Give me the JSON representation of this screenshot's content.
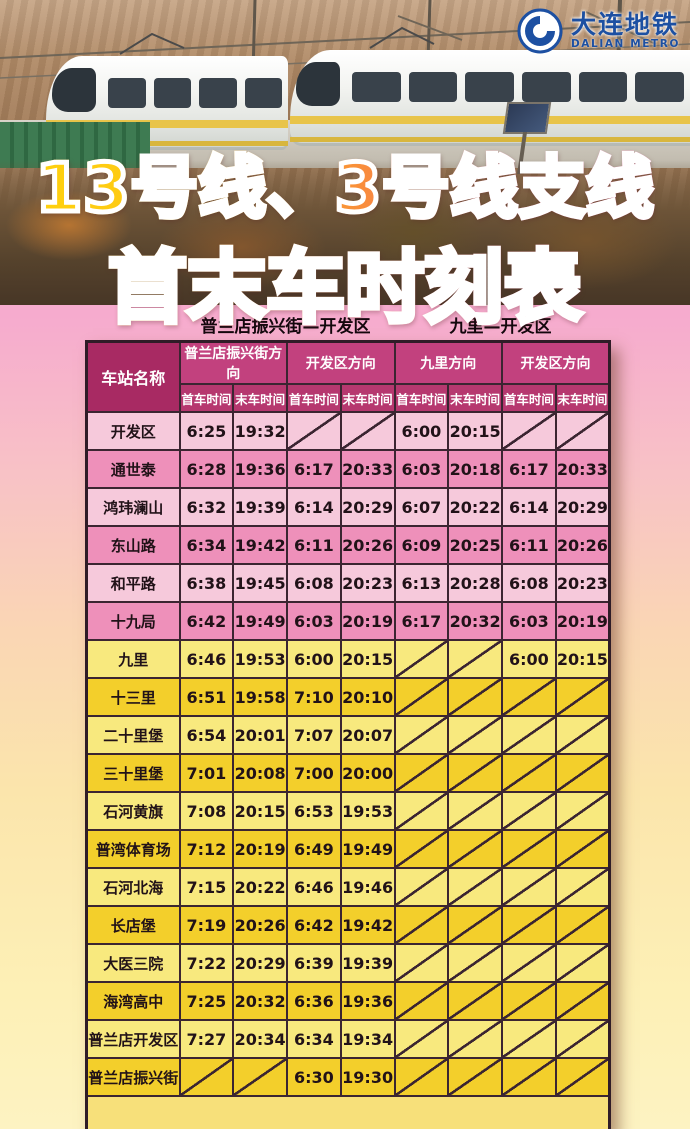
{
  "logo": {
    "cn": "大连地铁",
    "en": "DALIAN METRO"
  },
  "title": {
    "line1": "13号线、3号线支线",
    "line2": "首末车时刻表"
  },
  "table": {
    "group_headers": [
      "普兰店振兴街—开发区",
      "九里—开发区"
    ],
    "station_col_header": "车站名称",
    "direction_headers": [
      "普兰店振兴街方向",
      "开发区方向",
      "九里方向",
      "开发区方向"
    ],
    "sub_headers": [
      "首车时间",
      "末车时间"
    ],
    "rows": [
      {
        "station": "开发区",
        "times": [
          "6:25",
          "19:32",
          null,
          null,
          "6:00",
          "20:15",
          null,
          null
        ]
      },
      {
        "station": "通世泰",
        "times": [
          "6:28",
          "19:36",
          "6:17",
          "20:33",
          "6:03",
          "20:18",
          "6:17",
          "20:33"
        ]
      },
      {
        "station": "鸿玮澜山",
        "times": [
          "6:32",
          "19:39",
          "6:14",
          "20:29",
          "6:07",
          "20:22",
          "6:14",
          "20:29"
        ]
      },
      {
        "station": "东山路",
        "times": [
          "6:34",
          "19:42",
          "6:11",
          "20:26",
          "6:09",
          "20:25",
          "6:11",
          "20:26"
        ]
      },
      {
        "station": "和平路",
        "times": [
          "6:38",
          "19:45",
          "6:08",
          "20:23",
          "6:13",
          "20:28",
          "6:08",
          "20:23"
        ]
      },
      {
        "station": "十九局",
        "times": [
          "6:42",
          "19:49",
          "6:03",
          "20:19",
          "6:17",
          "20:32",
          "6:03",
          "20:19"
        ]
      },
      {
        "station": "九里",
        "times": [
          "6:46",
          "19:53",
          "6:00",
          "20:15",
          null,
          null,
          "6:00",
          "20:15"
        ]
      },
      {
        "station": "十三里",
        "times": [
          "6:51",
          "19:58",
          "7:10",
          "20:10",
          null,
          null,
          null,
          null
        ]
      },
      {
        "station": "二十里堡",
        "times": [
          "6:54",
          "20:01",
          "7:07",
          "20:07",
          null,
          null,
          null,
          null
        ]
      },
      {
        "station": "三十里堡",
        "times": [
          "7:01",
          "20:08",
          "7:00",
          "20:00",
          null,
          null,
          null,
          null
        ]
      },
      {
        "station": "石河黄旗",
        "times": [
          "7:08",
          "20:15",
          "6:53",
          "19:53",
          null,
          null,
          null,
          null
        ]
      },
      {
        "station": "普湾体育场",
        "times": [
          "7:12",
          "20:19",
          "6:49",
          "19:49",
          null,
          null,
          null,
          null
        ]
      },
      {
        "station": "石河北海",
        "times": [
          "7:15",
          "20:22",
          "6:46",
          "19:46",
          null,
          null,
          null,
          null
        ]
      },
      {
        "station": "长店堡",
        "times": [
          "7:19",
          "20:26",
          "6:42",
          "19:42",
          null,
          null,
          null,
          null
        ]
      },
      {
        "station": "大医三院",
        "times": [
          "7:22",
          "20:29",
          "6:39",
          "19:39",
          null,
          null,
          null,
          null
        ]
      },
      {
        "station": "海湾高中",
        "times": [
          "7:25",
          "20:32",
          "6:36",
          "19:36",
          null,
          null,
          null,
          null
        ]
      },
      {
        "station": "普兰店开发区",
        "times": [
          "7:27",
          "20:34",
          "6:34",
          "19:34",
          null,
          null,
          null,
          null
        ]
      },
      {
        "station": "普兰店振兴街",
        "times": [
          null,
          null,
          "6:30",
          "19:30",
          null,
          null,
          null,
          null
        ]
      }
    ]
  },
  "colors": {
    "station_header_magenta": "#a82a63",
    "direction_header_magenta": "#c2417e",
    "sub_header_magenta": "#b6386f",
    "row_pink_light": "#f6c9db",
    "row_pink_dark": "#ee90ba",
    "row_yellow_light": "#f8e97e",
    "row_yellow_dark": "#f3cf2b",
    "footer_yellow": "#f7e07a",
    "logo_blue": "#1d50a2",
    "title_gradient_start": "#ffd30a",
    "title_gradient_mid": "#f98f3a",
    "title_gradient_end": "#e91274",
    "background_top_pink": "#f6abce",
    "background_bottom_yellow": "#fdf3c2"
  }
}
